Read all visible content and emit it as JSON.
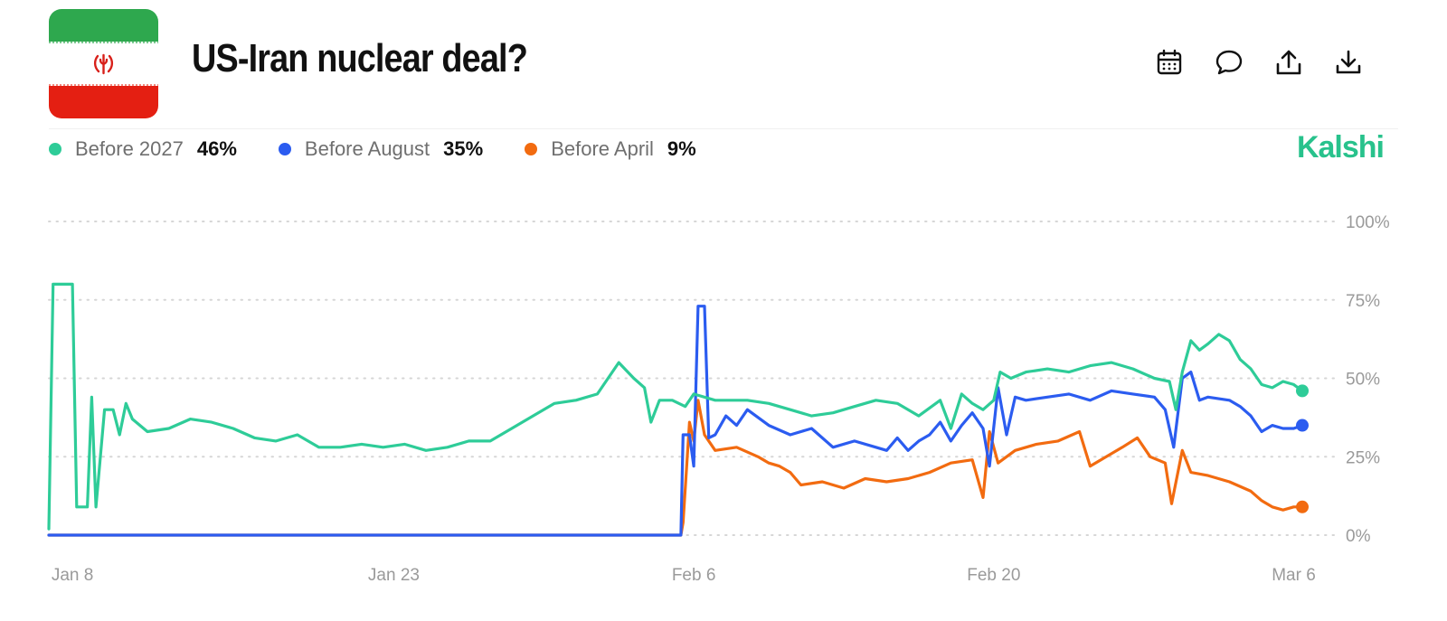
{
  "header": {
    "title": "US-Iran nuclear deal?",
    "brand": "Kalshi",
    "toolbar": [
      {
        "icon": "calendar-icon"
      },
      {
        "icon": "comment-icon"
      },
      {
        "icon": "share-icon"
      },
      {
        "icon": "download-icon"
      }
    ]
  },
  "colors": {
    "brand": "#28c28c",
    "before_2027": "#2ecc98",
    "before_august": "#2b5cf0",
    "before_april": "#f26b10",
    "gridline": "#d6d6d6"
  },
  "legend": [
    {
      "name": "Before 2027",
      "value": "46%",
      "color": "#2ecc98"
    },
    {
      "name": "Before August",
      "value": "35%",
      "color": "#2b5cf0"
    },
    {
      "name": "Before April",
      "value": "9%",
      "color": "#f26b10"
    }
  ],
  "chart_data": {
    "type": "line",
    "title": "US-Iran nuclear deal?",
    "xlabel": "",
    "ylabel": "",
    "x_unit": "day number in 2026 (Jan 8 = 8, Mar 6 = 65)",
    "x_ticks": [
      {
        "x": 8,
        "label": "Jan 8"
      },
      {
        "x": 23,
        "label": "Jan 23"
      },
      {
        "x": 37,
        "label": "Feb 6"
      },
      {
        "x": 51,
        "label": "Feb 20"
      },
      {
        "x": 65,
        "label": "Mar 6"
      }
    ],
    "xlim": [
      6.9,
      65.4
    ],
    "y_ticks": [
      {
        "y": 100,
        "label": "100%"
      },
      {
        "y": 75,
        "label": "75%"
      },
      {
        "y": 50,
        "label": "50%"
      },
      {
        "y": 25,
        "label": "25%"
      },
      {
        "y": 0,
        "label": "0%"
      }
    ],
    "ylim": [
      0,
      100
    ],
    "grid": "horizontal dotted",
    "legend_position": "top-left",
    "series": [
      {
        "name": "Before 2027",
        "color": "#2ecc98",
        "end_marker": true,
        "points": [
          [
            6.9,
            2
          ],
          [
            7.1,
            80
          ],
          [
            8.0,
            80
          ],
          [
            8.2,
            9
          ],
          [
            8.7,
            9
          ],
          [
            8.9,
            44
          ],
          [
            9.1,
            9
          ],
          [
            9.5,
            40
          ],
          [
            9.9,
            40
          ],
          [
            10.2,
            32
          ],
          [
            10.5,
            42
          ],
          [
            10.8,
            37
          ],
          [
            11.5,
            33
          ],
          [
            12.5,
            34
          ],
          [
            13.5,
            37
          ],
          [
            14.5,
            36
          ],
          [
            15.5,
            34
          ],
          [
            16.5,
            31
          ],
          [
            17.5,
            30
          ],
          [
            18.5,
            32
          ],
          [
            19.5,
            28
          ],
          [
            20.5,
            28
          ],
          [
            21.5,
            29
          ],
          [
            22.5,
            28
          ],
          [
            23.5,
            29
          ],
          [
            24.5,
            27
          ],
          [
            25.5,
            28
          ],
          [
            26.5,
            30
          ],
          [
            27.5,
            30
          ],
          [
            28.5,
            34
          ],
          [
            29.5,
            38
          ],
          [
            30.5,
            42
          ],
          [
            31.5,
            43
          ],
          [
            32.5,
            45
          ],
          [
            33.5,
            55
          ],
          [
            34.2,
            50
          ],
          [
            34.7,
            47
          ],
          [
            35.0,
            36
          ],
          [
            35.4,
            43
          ],
          [
            36.0,
            43
          ],
          [
            36.6,
            41
          ],
          [
            37.0,
            45
          ],
          [
            38.0,
            43
          ],
          [
            39.5,
            43
          ],
          [
            40.5,
            42
          ],
          [
            41.5,
            40
          ],
          [
            42.5,
            38
          ],
          [
            43.5,
            39
          ],
          [
            44.5,
            41
          ],
          [
            45.5,
            43
          ],
          [
            46.5,
            42
          ],
          [
            47.5,
            38
          ],
          [
            48.5,
            43
          ],
          [
            49.0,
            34
          ],
          [
            49.5,
            45
          ],
          [
            50.0,
            42
          ],
          [
            50.5,
            40
          ],
          [
            51.0,
            43
          ],
          [
            51.3,
            52
          ],
          [
            51.8,
            50
          ],
          [
            52.5,
            52
          ],
          [
            53.5,
            53
          ],
          [
            54.5,
            52
          ],
          [
            55.5,
            54
          ],
          [
            56.5,
            55
          ],
          [
            57.5,
            53
          ],
          [
            58.5,
            50
          ],
          [
            59.2,
            49
          ],
          [
            59.5,
            40
          ],
          [
            59.8,
            52
          ],
          [
            60.2,
            62
          ],
          [
            60.6,
            59
          ],
          [
            61.0,
            61
          ],
          [
            61.5,
            64
          ],
          [
            62.0,
            62
          ],
          [
            62.5,
            56
          ],
          [
            63.0,
            53
          ],
          [
            63.5,
            48
          ],
          [
            64.0,
            47
          ],
          [
            64.5,
            49
          ],
          [
            65.0,
            48
          ],
          [
            65.4,
            46
          ]
        ]
      },
      {
        "name": "Before August",
        "color": "#2b5cf0",
        "end_marker": true,
        "points": [
          [
            6.9,
            0
          ],
          [
            36.4,
            0
          ],
          [
            36.5,
            32
          ],
          [
            36.8,
            32
          ],
          [
            37.0,
            22
          ],
          [
            37.2,
            73
          ],
          [
            37.5,
            73
          ],
          [
            37.7,
            31
          ],
          [
            38.0,
            32
          ],
          [
            38.5,
            38
          ],
          [
            39.0,
            35
          ],
          [
            39.5,
            40
          ],
          [
            40.5,
            35
          ],
          [
            41.5,
            32
          ],
          [
            42.5,
            34
          ],
          [
            43.5,
            28
          ],
          [
            44.5,
            30
          ],
          [
            45.5,
            28
          ],
          [
            46.0,
            27
          ],
          [
            46.5,
            31
          ],
          [
            47.0,
            27
          ],
          [
            47.5,
            30
          ],
          [
            48.0,
            32
          ],
          [
            48.5,
            36
          ],
          [
            49.0,
            30
          ],
          [
            49.5,
            35
          ],
          [
            50.0,
            39
          ],
          [
            50.5,
            34
          ],
          [
            50.8,
            22
          ],
          [
            51.2,
            47
          ],
          [
            51.6,
            32
          ],
          [
            52.0,
            44
          ],
          [
            52.5,
            43
          ],
          [
            53.5,
            44
          ],
          [
            54.5,
            45
          ],
          [
            55.5,
            43
          ],
          [
            56.5,
            46
          ],
          [
            57.5,
            45
          ],
          [
            58.5,
            44
          ],
          [
            59.0,
            40
          ],
          [
            59.4,
            28
          ],
          [
            59.8,
            50
          ],
          [
            60.2,
            52
          ],
          [
            60.6,
            43
          ],
          [
            61.0,
            44
          ],
          [
            62.0,
            43
          ],
          [
            62.5,
            41
          ],
          [
            63.0,
            38
          ],
          [
            63.5,
            33
          ],
          [
            64.0,
            35
          ],
          [
            64.5,
            34
          ],
          [
            65.0,
            34
          ],
          [
            65.4,
            35
          ]
        ]
      },
      {
        "name": "Before April",
        "color": "#f26b10",
        "end_marker": true,
        "points": [
          [
            6.9,
            0
          ],
          [
            36.4,
            0
          ],
          [
            36.5,
            4
          ],
          [
            36.8,
            36
          ],
          [
            37.0,
            30
          ],
          [
            37.2,
            43
          ],
          [
            37.5,
            32
          ],
          [
            38.0,
            27
          ],
          [
            39.0,
            28
          ],
          [
            40.0,
            25
          ],
          [
            40.5,
            23
          ],
          [
            41.0,
            22
          ],
          [
            41.5,
            20
          ],
          [
            42.0,
            16
          ],
          [
            43.0,
            17
          ],
          [
            44.0,
            15
          ],
          [
            45.0,
            18
          ],
          [
            46.0,
            17
          ],
          [
            47.0,
            18
          ],
          [
            48.0,
            20
          ],
          [
            49.0,
            23
          ],
          [
            50.0,
            24
          ],
          [
            50.5,
            12
          ],
          [
            50.8,
            33
          ],
          [
            51.2,
            23
          ],
          [
            52.0,
            27
          ],
          [
            53.0,
            29
          ],
          [
            54.0,
            30
          ],
          [
            55.0,
            33
          ],
          [
            55.5,
            22
          ],
          [
            56.0,
            24
          ],
          [
            57.0,
            28
          ],
          [
            57.7,
            31
          ],
          [
            58.3,
            25
          ],
          [
            59.0,
            23
          ],
          [
            59.3,
            10
          ],
          [
            59.8,
            27
          ],
          [
            60.2,
            20
          ],
          [
            61.0,
            19
          ],
          [
            62.0,
            17
          ],
          [
            63.0,
            14
          ],
          [
            63.5,
            11
          ],
          [
            64.0,
            9
          ],
          [
            64.5,
            8
          ],
          [
            65.0,
            9
          ],
          [
            65.4,
            9
          ]
        ]
      }
    ]
  }
}
